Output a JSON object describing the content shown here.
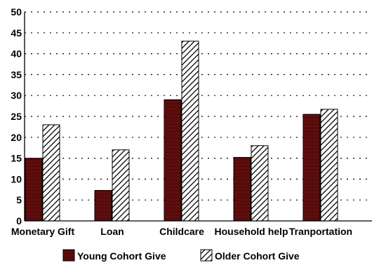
{
  "chart_data": {
    "type": "bar",
    "categories": [
      "Monetary Gift",
      "Loan",
      "Childcare",
      "Household help",
      "Tranportation"
    ],
    "series": [
      {
        "name": "Young Cohort Give",
        "values": [
          15,
          7.3,
          29,
          15.2,
          25.5
        ],
        "color": "#7a1414",
        "pattern": "horizontal-stripes"
      },
      {
        "name": "Older Cohort Give",
        "values": [
          23,
          17,
          43,
          18,
          26.7
        ],
        "color": "#000000",
        "pattern": "diagonal-hatch"
      }
    ],
    "yticks": [
      0,
      5,
      10,
      15,
      20,
      25,
      30,
      35,
      40,
      45,
      50
    ],
    "ylim": [
      0,
      50
    ],
    "grid": true,
    "legend": "bottom"
  }
}
